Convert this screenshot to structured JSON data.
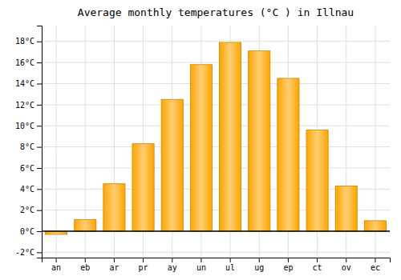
{
  "chart_data": {
    "type": "bar",
    "title": "Average monthly temperatures (°C ) in Illnau",
    "categories": [
      "an",
      "eb",
      "ar",
      "pr",
      "ay",
      "un",
      "ul",
      "ug",
      "ep",
      "ct",
      "ov",
      "ec"
    ],
    "values": [
      -0.3,
      1.1,
      4.5,
      8.3,
      12.5,
      15.8,
      17.9,
      17.1,
      14.5,
      9.6,
      4.3,
      1.0
    ],
    "color": "#FFA500",
    "ylim": [
      -2.5,
      19.5
    ],
    "yticks": [
      {
        "value": -2,
        "label": "-2°C"
      },
      {
        "value": 0,
        "label": "0°C"
      },
      {
        "value": 2,
        "label": "2°C"
      },
      {
        "value": 4,
        "label": "4°C"
      },
      {
        "value": 6,
        "label": "6°C"
      },
      {
        "value": 8,
        "label": "8°C"
      },
      {
        "value": 10,
        "label": "10°C"
      },
      {
        "value": 12,
        "label": "12°C"
      },
      {
        "value": 14,
        "label": "14°C"
      },
      {
        "value": 16,
        "label": "16°C"
      },
      {
        "value": 18,
        "label": "18°C"
      }
    ],
    "grid": true
  }
}
